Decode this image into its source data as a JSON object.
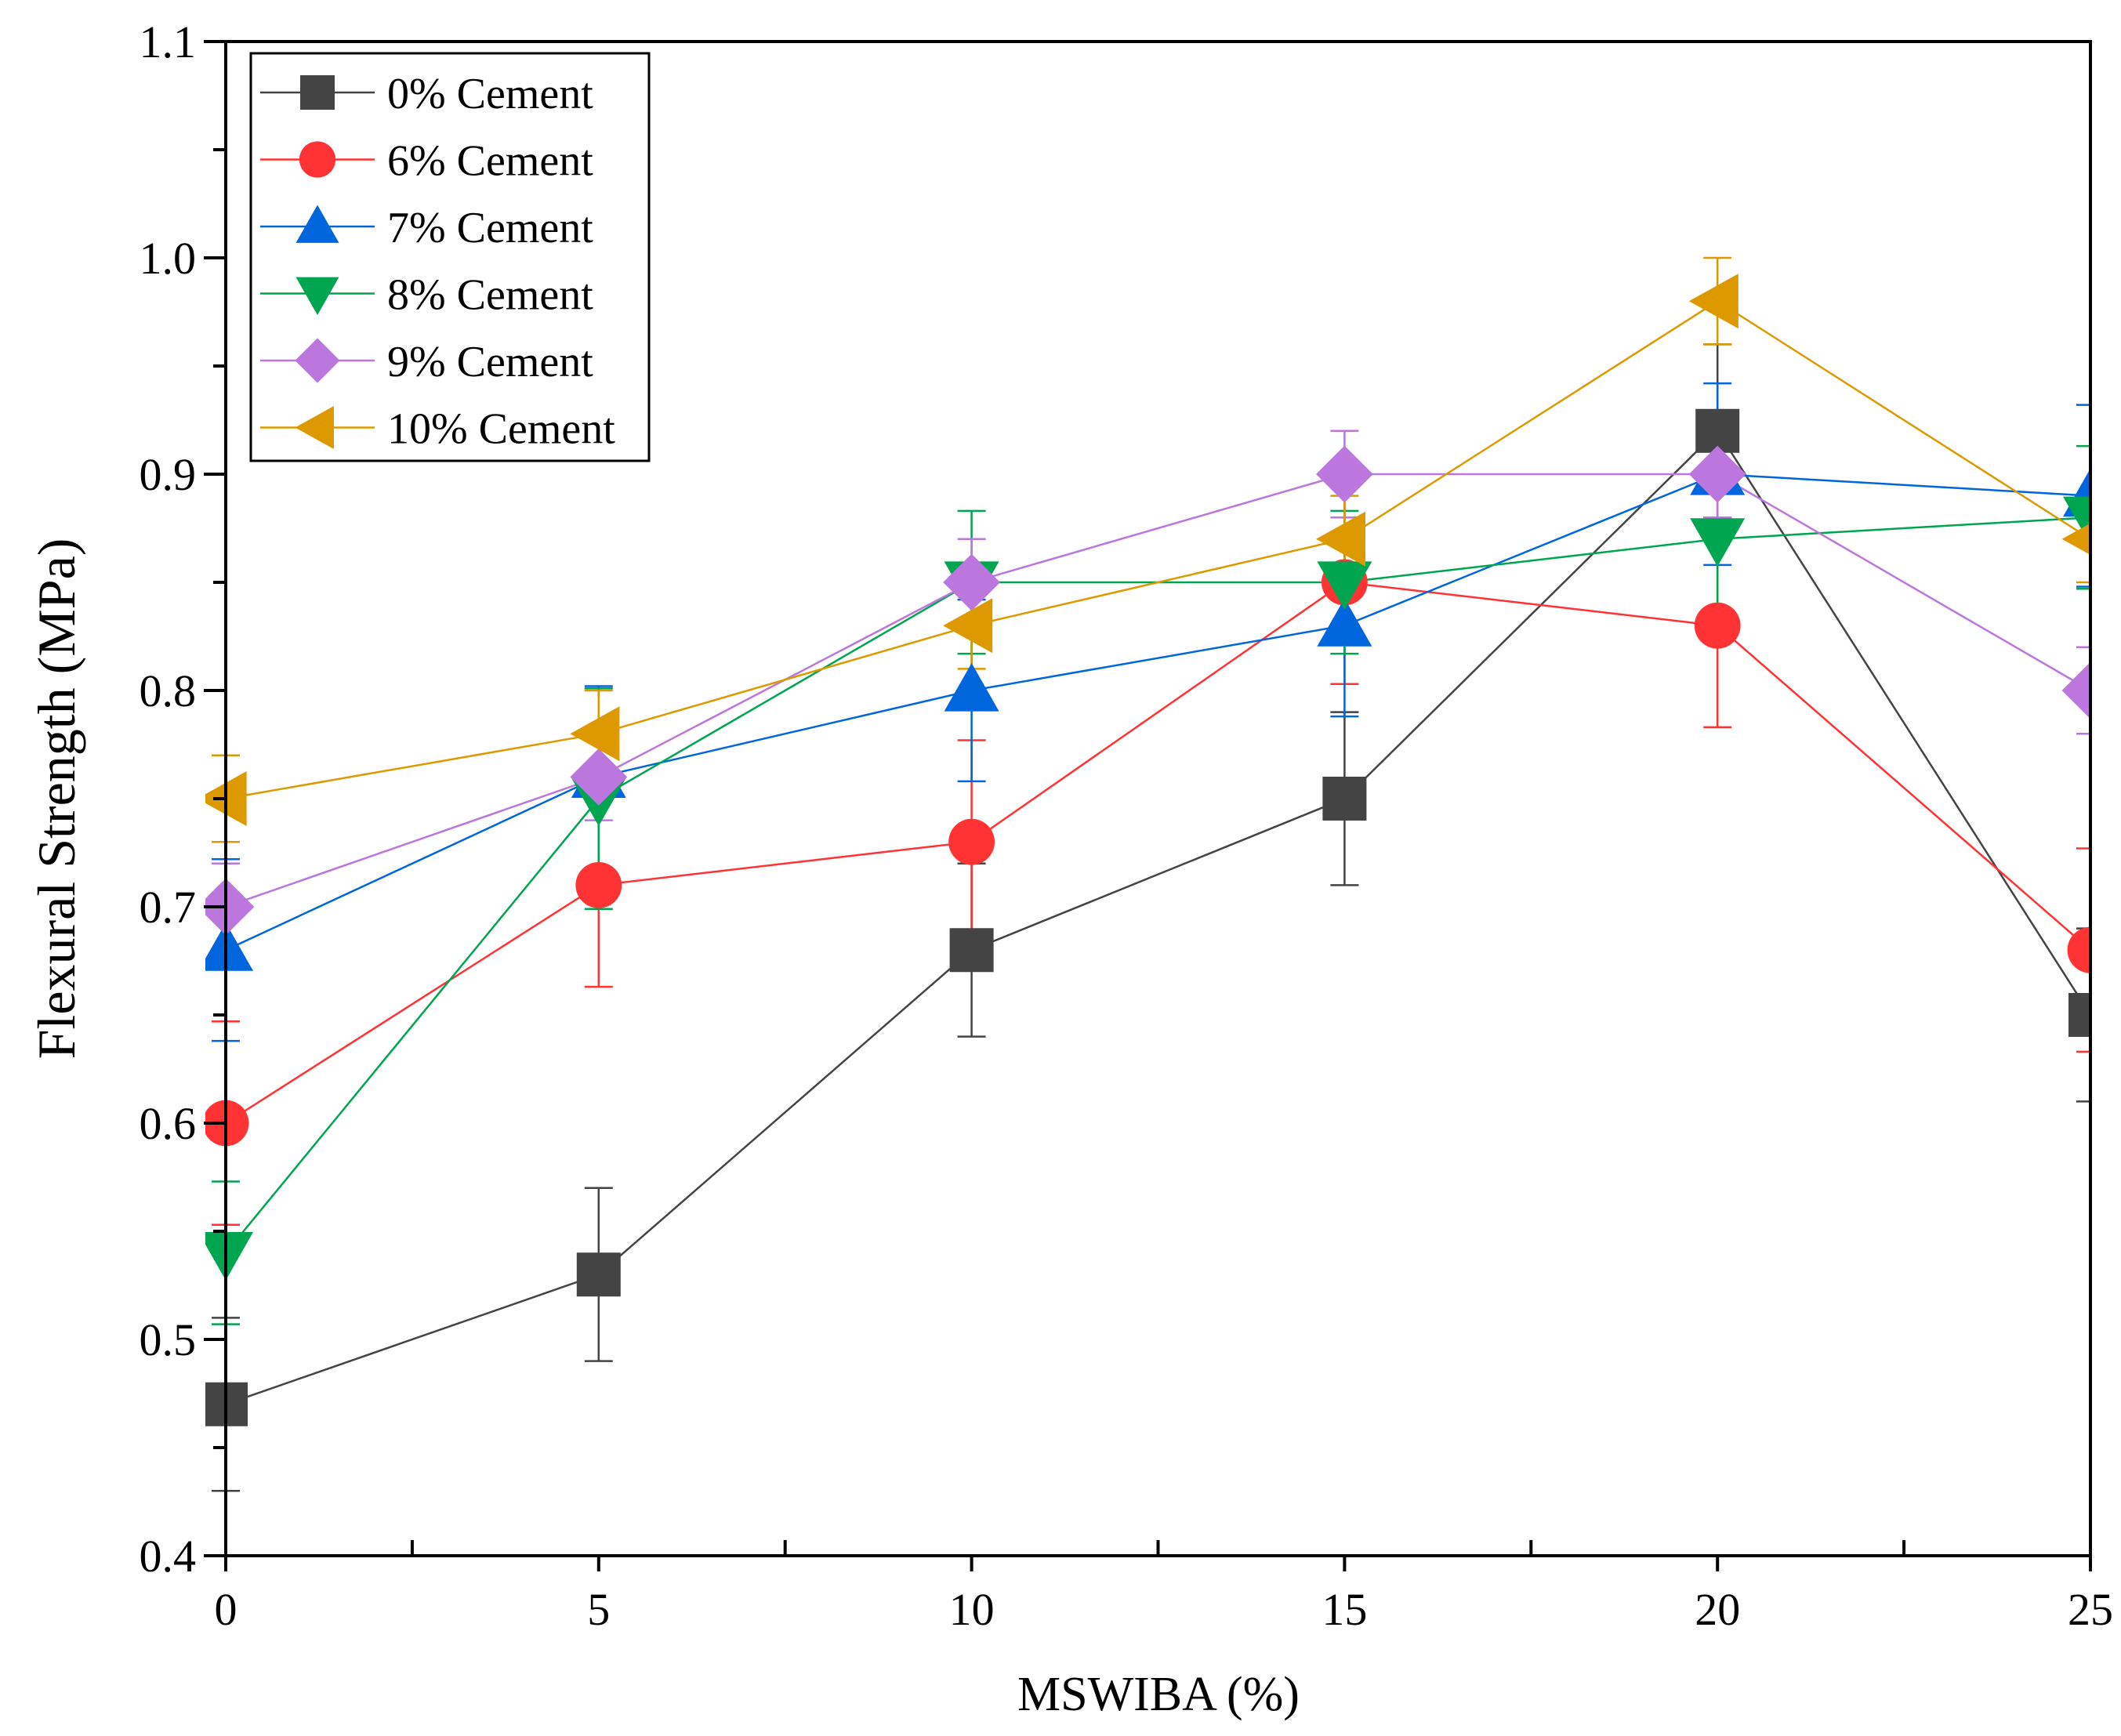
{
  "chart_data": {
    "type": "line",
    "title": "",
    "xlabel": "MSWIBA (%)",
    "ylabel": "Flexural Strength (MPa)",
    "xlim": [
      0,
      25
    ],
    "ylim": [
      0.4,
      1.1
    ],
    "x_ticks": [
      "0",
      "5",
      "10",
      "15",
      "20",
      "25"
    ],
    "y_ticks": [
      "0.4",
      "0.5",
      "0.6",
      "0.7",
      "0.8",
      "0.9",
      "1.0",
      "1.1"
    ],
    "x_tick_values": [
      0,
      5,
      10,
      15,
      20,
      25
    ],
    "y_tick_values": [
      0.4,
      0.5,
      0.6,
      0.7,
      0.8,
      0.9,
      1.0,
      1.1
    ],
    "x_minor_tick_values": [
      2.5,
      7.5,
      12.5,
      17.5,
      22.5
    ],
    "y_minor_tick_values": [
      0.45,
      0.55,
      0.65,
      0.75,
      0.85,
      0.95,
      1.05
    ],
    "grid": false,
    "legend_position": "top-left",
    "x": [
      0,
      5,
      10,
      15,
      20,
      25
    ],
    "series": [
      {
        "name": "0% Cement",
        "marker": "square",
        "color": "#444444",
        "values": [
          0.47,
          0.53,
          0.68,
          0.75,
          0.92,
          0.65
        ],
        "errors": [
          0.04,
          0.04,
          0.04,
          0.04,
          0.04,
          0.04
        ]
      },
      {
        "name": "6% Cement",
        "marker": "circle",
        "color": "#ff3333",
        "values": [
          0.6,
          0.71,
          0.73,
          0.85,
          0.83,
          0.68
        ],
        "errors": [
          0.047,
          0.047,
          0.047,
          0.047,
          0.047,
          0.047
        ]
      },
      {
        "name": "7% Cement",
        "marker": "triangle-up",
        "color": "#0066dd",
        "values": [
          0.68,
          0.76,
          0.8,
          0.83,
          0.9,
          0.89
        ],
        "errors": [
          0.042,
          0.042,
          0.042,
          0.042,
          0.042,
          0.042
        ]
      },
      {
        "name": "8% Cement",
        "marker": "triangle-down",
        "color": "#00a550",
        "values": [
          0.54,
          0.75,
          0.85,
          0.85,
          0.87,
          0.88
        ],
        "errors": [
          0.033,
          0.051,
          0.033,
          0.033,
          0.033,
          0.033
        ]
      },
      {
        "name": "9% Cement",
        "marker": "diamond",
        "color": "#bb77dd",
        "values": [
          0.7,
          0.76,
          0.85,
          0.9,
          0.9,
          0.8
        ],
        "errors": [
          0.02,
          0.02,
          0.02,
          0.02,
          0.02,
          0.02
        ]
      },
      {
        "name": "10% Cement",
        "marker": "triangle-left",
        "color": "#dd9900",
        "values": [
          0.75,
          0.78,
          0.83,
          0.87,
          0.98,
          0.87
        ],
        "errors": [
          0.02,
          0.02,
          0.02,
          0.02,
          0.02,
          0.02
        ]
      }
    ]
  }
}
